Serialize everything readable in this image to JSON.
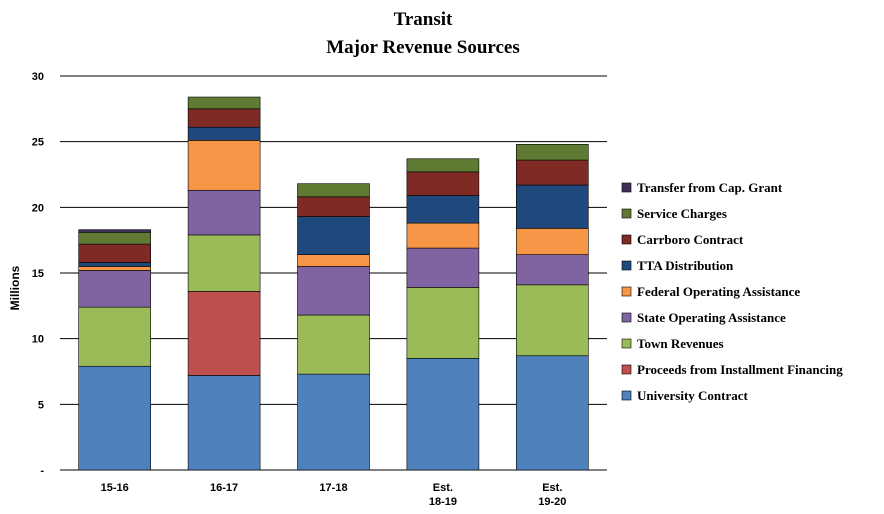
{
  "chart_data": {
    "type": "bar",
    "stacked": true,
    "title": [
      "Transit",
      "Major Revenue Sources"
    ],
    "ylabel": "Millions",
    "xlabel": "",
    "ylim": [
      0,
      30
    ],
    "yticks": [
      {
        "value": 0,
        "label": "-"
      },
      {
        "value": 5,
        "label": "5"
      },
      {
        "value": 10,
        "label": "10"
      },
      {
        "value": 15,
        "label": "15"
      },
      {
        "value": 20,
        "label": "20"
      },
      {
        "value": 25,
        "label": "25"
      },
      {
        "value": 30,
        "label": "30"
      }
    ],
    "grid": true,
    "legend_position": "right",
    "categories": [
      [
        "15-16"
      ],
      [
        "16-17"
      ],
      [
        "17-18"
      ],
      [
        "Est.",
        "18-19"
      ],
      [
        "Est.",
        "19-20"
      ]
    ],
    "series": [
      {
        "name": "University Contract",
        "color": "#4F81BD",
        "values": [
          7.9,
          7.2,
          7.3,
          8.5,
          8.7
        ]
      },
      {
        "name": "Proceeds from Installment Financing",
        "color": "#C0504D",
        "values": [
          0,
          6.4,
          0,
          0,
          0
        ]
      },
      {
        "name": "Town Revenues",
        "color": "#9BBB59",
        "values": [
          4.5,
          4.3,
          4.5,
          5.4,
          5.4
        ]
      },
      {
        "name": "State Operating Assistance",
        "color": "#8064A2",
        "values": [
          2.8,
          3.4,
          3.7,
          3.0,
          2.3
        ]
      },
      {
        "name": "Federal Operating Assistance",
        "color": "#F79646",
        "values": [
          0.3,
          3.8,
          0.9,
          1.9,
          2.0
        ]
      },
      {
        "name": "TTA Distribution",
        "color": "#1F497D",
        "values": [
          0.3,
          1.0,
          2.9,
          2.1,
          3.3
        ]
      },
      {
        "name": "Carrboro Contract",
        "color": "#7F2A24",
        "values": [
          1.4,
          1.4,
          1.5,
          1.8,
          1.9
        ]
      },
      {
        "name": "Service Charges",
        "color": "#5E7A33",
        "values": [
          0.9,
          0.9,
          1.0,
          1.0,
          1.2
        ]
      },
      {
        "name": "Transfer from Cap. Grant",
        "color": "#3F3159",
        "values": [
          0.2,
          0,
          0,
          0,
          0
        ]
      }
    ]
  }
}
